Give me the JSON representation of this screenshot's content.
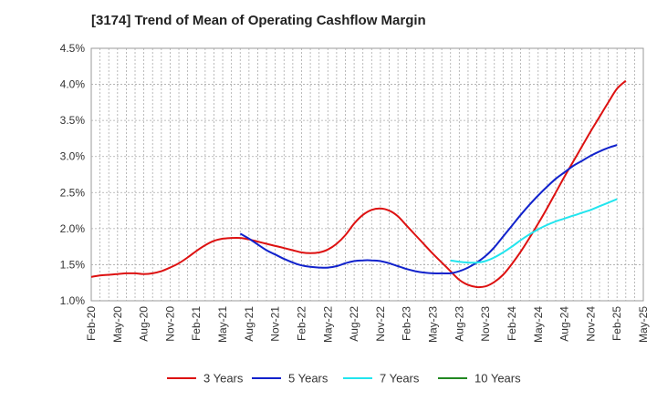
{
  "title": "[3174]  Trend of Mean of Operating Cashflow Margin",
  "chart_data": {
    "type": "line",
    "title": "[3174]  Trend of Mean of Operating Cashflow Margin",
    "xlabel": "",
    "ylabel": "",
    "x_tick_labels": [
      "Feb-20",
      "May-20",
      "Aug-20",
      "Nov-20",
      "Feb-21",
      "May-21",
      "Aug-21",
      "Nov-21",
      "Feb-22",
      "May-22",
      "Aug-22",
      "Nov-22",
      "Feb-23",
      "May-23",
      "Aug-23",
      "Nov-23",
      "Feb-24",
      "May-24",
      "Aug-24",
      "Nov-24",
      "Feb-25",
      "May-25"
    ],
    "y_tick_labels": [
      "1.0%",
      "1.5%",
      "2.0%",
      "2.5%",
      "3.0%",
      "3.5%",
      "4.0%",
      "4.5%"
    ],
    "ylim": [
      1.0,
      4.5
    ],
    "grid": true,
    "legend_position": "bottom",
    "series": [
      {
        "name": "3 Years",
        "color": "#dd1111",
        "points": [
          [
            "Feb-20",
            1.33
          ],
          [
            "Mar-20",
            1.35
          ],
          [
            "Apr-20",
            1.36
          ],
          [
            "May-20",
            1.37
          ],
          [
            "Jun-20",
            1.38
          ],
          [
            "Jul-20",
            1.38
          ],
          [
            "Aug-20",
            1.37
          ],
          [
            "Sep-20",
            1.38
          ],
          [
            "Oct-20",
            1.41
          ],
          [
            "Nov-20",
            1.46
          ],
          [
            "Dec-20",
            1.52
          ],
          [
            "Jan-21",
            1.6
          ],
          [
            "Feb-21",
            1.69
          ],
          [
            "Mar-21",
            1.77
          ],
          [
            "Apr-21",
            1.83
          ],
          [
            "May-21",
            1.86
          ],
          [
            "Jun-21",
            1.87
          ],
          [
            "Jul-21",
            1.87
          ],
          [
            "Aug-21",
            1.85
          ],
          [
            "Sep-21",
            1.82
          ],
          [
            "Oct-21",
            1.79
          ],
          [
            "Nov-21",
            1.76
          ],
          [
            "Dec-21",
            1.73
          ],
          [
            "Jan-22",
            1.7
          ],
          [
            "Feb-22",
            1.67
          ],
          [
            "Mar-22",
            1.66
          ],
          [
            "Apr-22",
            1.67
          ],
          [
            "May-22",
            1.71
          ],
          [
            "Jun-22",
            1.79
          ],
          [
            "Jul-22",
            1.91
          ],
          [
            "Aug-22",
            2.07
          ],
          [
            "Sep-22",
            2.19
          ],
          [
            "Oct-22",
            2.26
          ],
          [
            "Nov-22",
            2.28
          ],
          [
            "Dec-22",
            2.25
          ],
          [
            "Jan-23",
            2.17
          ],
          [
            "Feb-23",
            2.04
          ],
          [
            "Mar-23",
            1.91
          ],
          [
            "Apr-23",
            1.78
          ],
          [
            "May-23",
            1.65
          ],
          [
            "Jun-23",
            1.53
          ],
          [
            "Jul-23",
            1.41
          ],
          [
            "Aug-23",
            1.29
          ],
          [
            "Sep-23",
            1.22
          ],
          [
            "Oct-23",
            1.19
          ],
          [
            "Nov-23",
            1.2
          ],
          [
            "Dec-23",
            1.26
          ],
          [
            "Jan-24",
            1.36
          ],
          [
            "Feb-24",
            1.51
          ],
          [
            "Mar-24",
            1.68
          ],
          [
            "Apr-24",
            1.87
          ],
          [
            "May-24",
            2.07
          ],
          [
            "Jun-24",
            2.28
          ],
          [
            "Jul-24",
            2.5
          ],
          [
            "Aug-24",
            2.72
          ],
          [
            "Sep-24",
            2.93
          ],
          [
            "Oct-24",
            3.14
          ],
          [
            "Nov-24",
            3.35
          ],
          [
            "Dec-24",
            3.55
          ],
          [
            "Jan-25",
            3.75
          ],
          [
            "Feb-25",
            3.94
          ],
          [
            "Mar-25",
            4.05
          ]
        ]
      },
      {
        "name": "5 Years",
        "color": "#1122cc",
        "points": [
          [
            "Jul-21",
            1.93
          ],
          [
            "Aug-21",
            1.86
          ],
          [
            "Sep-21",
            1.78
          ],
          [
            "Oct-21",
            1.7
          ],
          [
            "Nov-21",
            1.64
          ],
          [
            "Dec-21",
            1.58
          ],
          [
            "Jan-22",
            1.53
          ],
          [
            "Feb-22",
            1.49
          ],
          [
            "Mar-22",
            1.47
          ],
          [
            "Apr-22",
            1.46
          ],
          [
            "May-22",
            1.46
          ],
          [
            "Jun-22",
            1.48
          ],
          [
            "Jul-22",
            1.52
          ],
          [
            "Aug-22",
            1.55
          ],
          [
            "Sep-22",
            1.56
          ],
          [
            "Oct-22",
            1.56
          ],
          [
            "Nov-22",
            1.55
          ],
          [
            "Dec-22",
            1.52
          ],
          [
            "Jan-23",
            1.48
          ],
          [
            "Feb-23",
            1.44
          ],
          [
            "Mar-23",
            1.41
          ],
          [
            "Apr-23",
            1.39
          ],
          [
            "May-23",
            1.38
          ],
          [
            "Jun-23",
            1.38
          ],
          [
            "Jul-23",
            1.38
          ],
          [
            "Aug-23",
            1.41
          ],
          [
            "Sep-23",
            1.46
          ],
          [
            "Oct-23",
            1.53
          ],
          [
            "Nov-23",
            1.62
          ],
          [
            "Dec-23",
            1.74
          ],
          [
            "Jan-24",
            1.89
          ],
          [
            "Feb-24",
            2.04
          ],
          [
            "Mar-24",
            2.19
          ],
          [
            "Apr-24",
            2.33
          ],
          [
            "May-24",
            2.46
          ],
          [
            "Jun-24",
            2.58
          ],
          [
            "Jul-24",
            2.69
          ],
          [
            "Aug-24",
            2.78
          ],
          [
            "Sep-24",
            2.87
          ],
          [
            "Oct-24",
            2.94
          ],
          [
            "Nov-24",
            3.01
          ],
          [
            "Dec-24",
            3.07
          ],
          [
            "Jan-25",
            3.12
          ],
          [
            "Feb-25",
            3.16
          ]
        ]
      },
      {
        "name": "7 Years",
        "color": "#22e5ee",
        "points": [
          [
            "Jul-23",
            1.56
          ],
          [
            "Aug-23",
            1.54
          ],
          [
            "Sep-23",
            1.53
          ],
          [
            "Oct-23",
            1.53
          ],
          [
            "Nov-23",
            1.55
          ],
          [
            "Dec-23",
            1.6
          ],
          [
            "Jan-24",
            1.67
          ],
          [
            "Feb-24",
            1.75
          ],
          [
            "Mar-24",
            1.84
          ],
          [
            "Apr-24",
            1.92
          ],
          [
            "May-24",
            1.99
          ],
          [
            "Jun-24",
            2.05
          ],
          [
            "Jul-24",
            2.1
          ],
          [
            "Aug-24",
            2.14
          ],
          [
            "Sep-24",
            2.18
          ],
          [
            "Oct-24",
            2.22
          ],
          [
            "Nov-24",
            2.26
          ],
          [
            "Dec-24",
            2.31
          ],
          [
            "Jan-25",
            2.36
          ],
          [
            "Feb-25",
            2.41
          ]
        ]
      },
      {
        "name": "10 Years",
        "color": "#228822",
        "points": []
      }
    ]
  }
}
